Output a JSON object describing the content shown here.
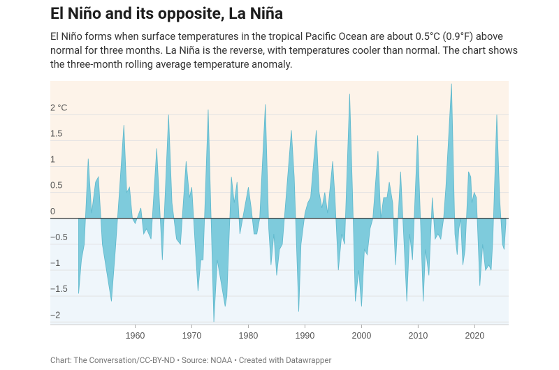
{
  "chart_data": {
    "type": "area",
    "title": "El Niño and its opposite, La Niña",
    "subtitle": "El Niño forms when surface temperatures in the tropical Pacific Ocean are about 0.5°C (0.9°F) above normal for three months. La Niña is the reverse, with temperatures cooler than normal. The chart shows the three-month rolling average temperature anomaly.",
    "footer": "Chart: The Conversation/CC-BY-ND • Source: NOAA • Created with Datawrapper",
    "x": [
      1950.0,
      1950.5,
      1951.0,
      1951.7,
      1952.3,
      1953.0,
      1953.5,
      1954.2,
      1955.8,
      1956.5,
      1957.2,
      1958.0,
      1958.5,
      1959.0,
      1959.5,
      1960.0,
      1961.0,
      1961.5,
      1962.0,
      1962.8,
      1963.8,
      1964.8,
      1965.9,
      1966.5,
      1967.3,
      1968.0,
      1969.0,
      1969.6,
      1970.0,
      1970.7,
      1971.1,
      1971.6,
      1972.0,
      1972.9,
      1973.9,
      1974.5,
      1975.9,
      1976.2,
      1977.0,
      1977.5,
      1978.0,
      1978.5,
      1979.0,
      1980.0,
      1980.5,
      1981.0,
      1981.5,
      1982.0,
      1983.0,
      1983.6,
      1984.0,
      1984.5,
      1985.0,
      1985.5,
      1986.0,
      1987.6,
      1988.1,
      1988.9,
      1989.3,
      1990.0,
      1990.5,
      1991.0,
      1992.0,
      1992.5,
      1993.0,
      1993.5,
      1994.0,
      1994.9,
      1995.3,
      1995.9,
      1996.5,
      1997.0,
      1997.9,
      1998.4,
      1998.9,
      1999.5,
      2000.0,
      2000.5,
      2001.0,
      2001.5,
      2002.0,
      2002.9,
      2003.4,
      2003.9,
      2004.5,
      2004.9,
      2005.5,
      2006.0,
      2006.5,
      2006.9,
      2007.3,
      2008.0,
      2008.5,
      2009.0,
      2009.9,
      2010.4,
      2010.9,
      2011.3,
      2011.9,
      2012.5,
      2013.0,
      2013.5,
      2014.0,
      2014.5,
      2014.9,
      2015.9,
      2016.5,
      2016.9,
      2017.2,
      2017.5,
      2017.9,
      2018.3,
      2018.9,
      2019.3,
      2019.5,
      2019.9,
      2020.3,
      2020.9,
      2021.4,
      2021.9,
      2022.5,
      2022.9,
      2023.2,
      2023.9,
      2024.4,
      2024.9,
      2025.2,
      2025.5
    ],
    "series": [
      {
        "name": "Temperature anomaly",
        "color": "#7ecbdc",
        "values": [
          -1.45,
          -0.8,
          -0.5,
          1.15,
          0.1,
          0.7,
          0.8,
          -0.5,
          -1.6,
          -0.6,
          0.5,
          1.8,
          0.5,
          0.6,
          0.0,
          -0.1,
          0.2,
          -0.3,
          -0.2,
          -0.4,
          1.35,
          -0.8,
          2.0,
          0.3,
          -0.4,
          -0.5,
          1.1,
          0.4,
          0.6,
          -0.7,
          -1.4,
          -0.8,
          -0.8,
          2.1,
          -2.0,
          -0.8,
          -1.7,
          -1.5,
          0.8,
          0.3,
          0.7,
          -0.3,
          0.0,
          0.6,
          0.2,
          -0.3,
          -0.3,
          0.0,
          2.2,
          -0.2,
          -0.9,
          -0.3,
          -1.1,
          -0.6,
          -0.5,
          1.7,
          0.8,
          -1.8,
          -0.5,
          0.1,
          0.3,
          0.4,
          1.7,
          0.5,
          0.2,
          0.5,
          0.1,
          1.1,
          0.4,
          -1.0,
          -0.3,
          -0.5,
          2.4,
          0.5,
          -1.6,
          -1.0,
          -1.7,
          -0.6,
          -0.7,
          -0.2,
          0.0,
          1.3,
          0.0,
          0.4,
          0.4,
          0.7,
          0.3,
          -0.9,
          0.1,
          0.9,
          0.0,
          -1.6,
          -0.3,
          -0.8,
          1.6,
          0.0,
          -1.6,
          -0.6,
          -1.1,
          0.4,
          -0.4,
          -0.3,
          -0.4,
          0.0,
          0.6,
          2.6,
          -0.3,
          -0.7,
          -0.2,
          0.0,
          -0.9,
          -0.6,
          0.9,
          0.8,
          0.3,
          0.5,
          0.4,
          -1.3,
          -0.5,
          -1.0,
          -0.9,
          -1.0,
          -0.4,
          2.0,
          0.4,
          -0.5,
          -0.6,
          -0.1
        ]
      }
    ],
    "xlim": [
      1945,
      2026
    ],
    "xticks": [
      1960,
      1970,
      1980,
      1990,
      2000,
      2010,
      2020
    ],
    "ylim": [
      -2.05,
      2.65
    ],
    "yticks": [
      {
        "value": 2,
        "label": "2 °C"
      },
      1.5,
      1,
      0.5,
      0,
      {
        "value": -0.5,
        "label": "−0.5"
      },
      {
        "value": -1,
        "label": "−1"
      },
      {
        "value": -1.5,
        "label": "−1.5"
      },
      {
        "value": -2,
        "label": "−2"
      }
    ],
    "grid": true
  }
}
